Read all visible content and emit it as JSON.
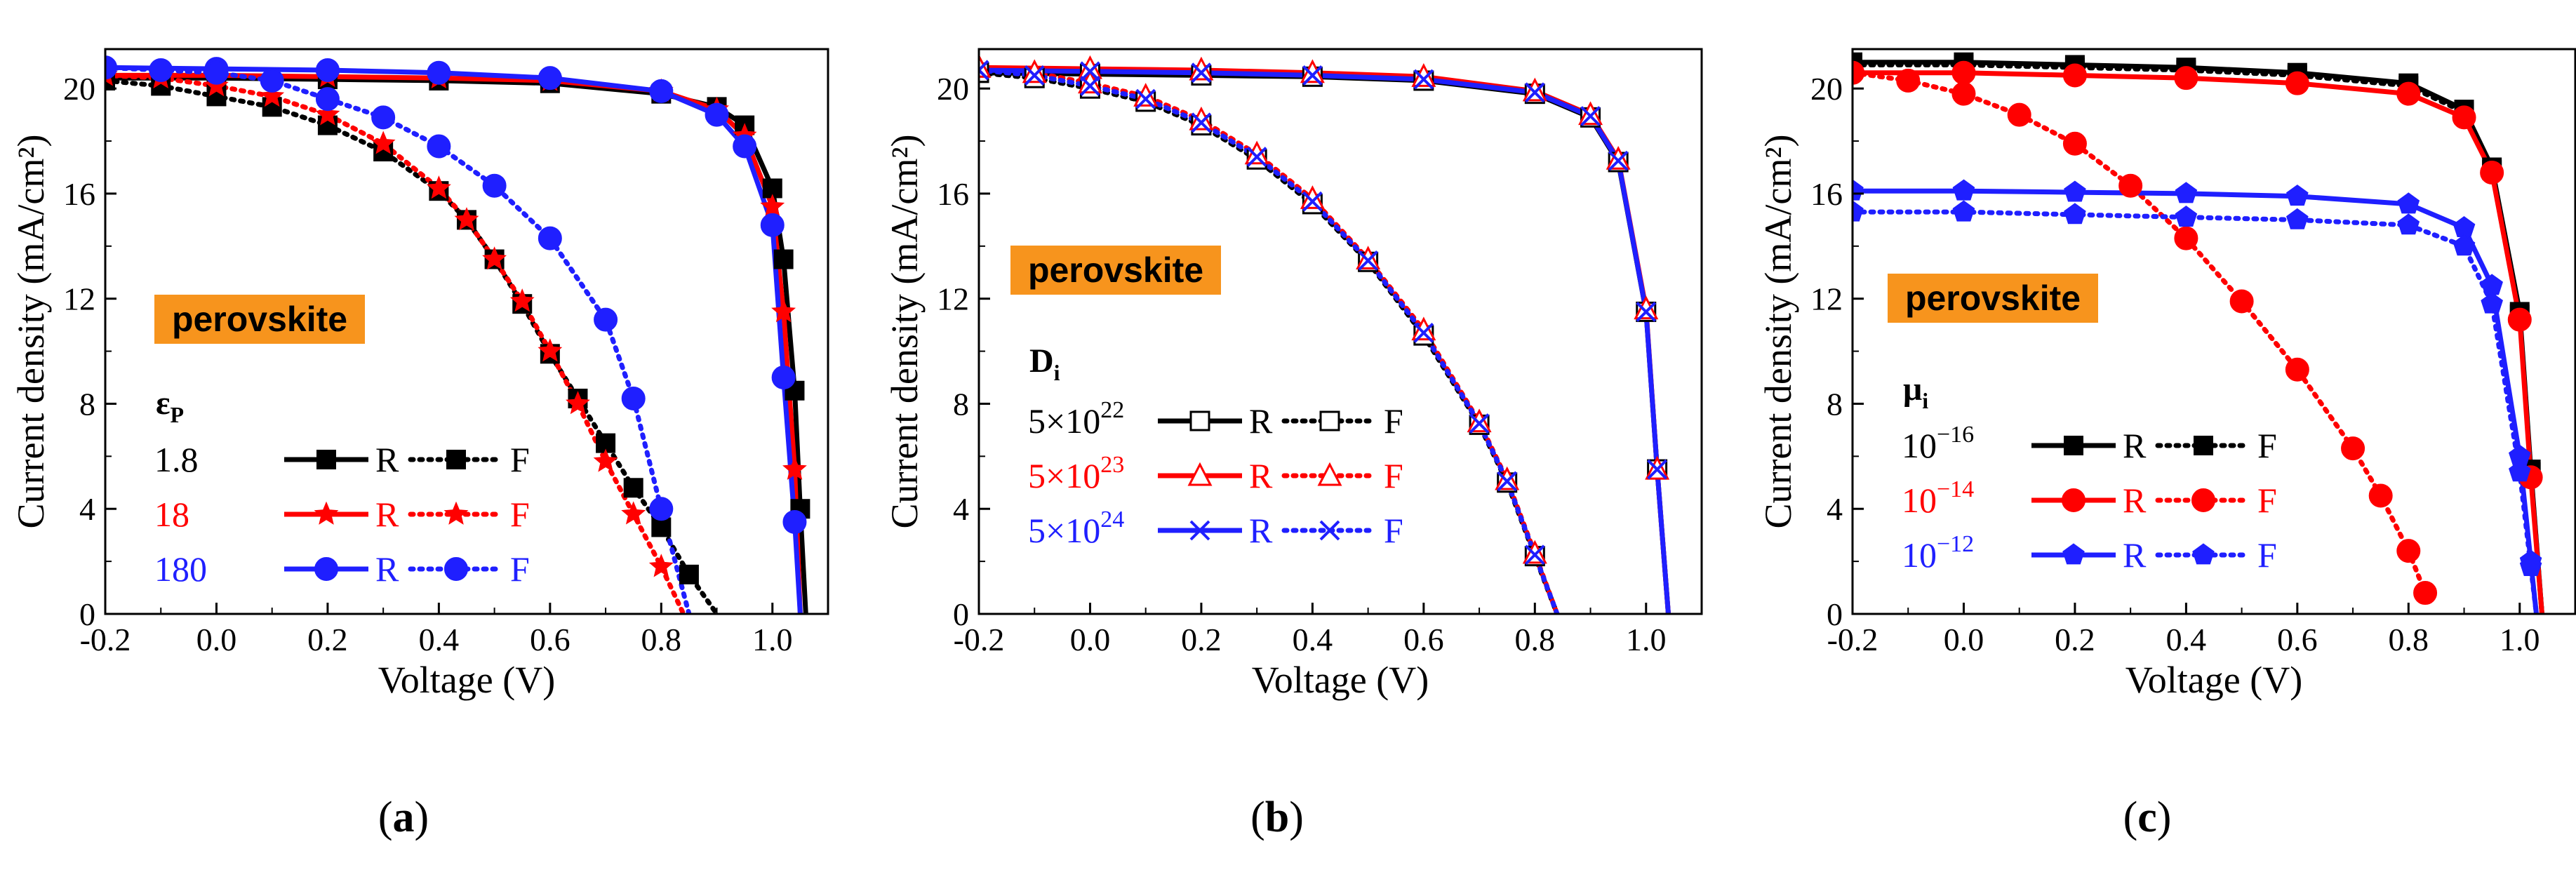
{
  "colors": {
    "black": "#000000",
    "red": "#ff0000",
    "blue": "#1f1fff",
    "badge": "#f7941d"
  },
  "chart_data": [
    {
      "type": "line",
      "panel_label": "(a)",
      "xlabel": "Voltage (V)",
      "ylabel": "Current density (mA/cm²)",
      "xlim": [
        -0.2,
        1.1
      ],
      "ylim": [
        0,
        21.5
      ],
      "xticks": [
        "-0.2",
        "0.0",
        "0.2",
        "0.4",
        "0.6",
        "0.8",
        "1.0"
      ],
      "xtick_values": [
        -0.2,
        0.0,
        0.2,
        0.4,
        0.6,
        0.8,
        1.0
      ],
      "yticks": [
        "0",
        "4",
        "8",
        "12",
        "16",
        "20"
      ],
      "ytick_values": [
        0,
        4,
        8,
        12,
        16,
        20
      ],
      "badge": "perovskite",
      "legend_param": "εP",
      "legend_reverse_label": "R",
      "legend_forward_label": "F",
      "series": [
        {
          "name": "1.8 R",
          "label": "1.8",
          "color": "#000000",
          "dash": "solid",
          "marker": "square",
          "x": [
            -0.2,
            0.0,
            0.2,
            0.4,
            0.6,
            0.8,
            0.9,
            0.95,
            1.0,
            1.02,
            1.04,
            1.05,
            1.06
          ],
          "y": [
            20.4,
            20.4,
            20.35,
            20.3,
            20.2,
            19.8,
            19.3,
            18.6,
            16.2,
            13.5,
            8.5,
            4.0,
            0
          ]
        },
        {
          "name": "1.8 F",
          "label": "1.8",
          "color": "#000000",
          "dash": "dot",
          "marker": "square",
          "x": [
            -0.2,
            -0.1,
            0.0,
            0.1,
            0.2,
            0.3,
            0.4,
            0.45,
            0.5,
            0.55,
            0.6,
            0.65,
            0.7,
            0.75,
            0.8,
            0.85,
            0.9
          ],
          "y": [
            20.3,
            20.1,
            19.7,
            19.3,
            18.6,
            17.6,
            16.1,
            15.0,
            13.5,
            11.8,
            9.9,
            8.2,
            6.5,
            4.8,
            3.3,
            1.5,
            0
          ]
        },
        {
          "name": "18 R",
          "label": "18",
          "color": "#ff0000",
          "dash": "solid",
          "marker": "star",
          "x": [
            -0.2,
            0.0,
            0.2,
            0.4,
            0.6,
            0.8,
            0.9,
            0.95,
            1.0,
            1.02,
            1.04,
            1.05
          ],
          "y": [
            20.5,
            20.5,
            20.45,
            20.4,
            20.3,
            19.9,
            19.2,
            18.2,
            15.5,
            11.5,
            5.5,
            0
          ]
        },
        {
          "name": "18 F",
          "label": "18",
          "color": "#ff0000",
          "dash": "dot",
          "marker": "star",
          "x": [
            -0.2,
            -0.1,
            0.0,
            0.1,
            0.2,
            0.3,
            0.4,
            0.45,
            0.5,
            0.55,
            0.6,
            0.65,
            0.7,
            0.75,
            0.8,
            0.84
          ],
          "y": [
            20.5,
            20.4,
            20.1,
            19.7,
            19.0,
            17.9,
            16.2,
            15.0,
            13.5,
            11.9,
            10.0,
            8.0,
            5.8,
            3.8,
            1.8,
            0
          ]
        },
        {
          "name": "180 R",
          "label": "180",
          "color": "#1f1fff",
          "dash": "solid",
          "marker": "circle",
          "x": [
            -0.2,
            0.0,
            0.2,
            0.4,
            0.6,
            0.8,
            0.9,
            0.95,
            1.0,
            1.02,
            1.04,
            1.05
          ],
          "y": [
            20.8,
            20.75,
            20.7,
            20.6,
            20.4,
            19.9,
            19.0,
            17.8,
            14.8,
            9.0,
            3.5,
            0
          ]
        },
        {
          "name": "180 F",
          "label": "180",
          "color": "#1f1fff",
          "dash": "dot",
          "marker": "circle",
          "x": [
            -0.2,
            -0.1,
            0.0,
            0.1,
            0.2,
            0.3,
            0.4,
            0.5,
            0.6,
            0.7,
            0.75,
            0.8,
            0.85
          ],
          "y": [
            20.8,
            20.7,
            20.6,
            20.3,
            19.6,
            18.9,
            17.8,
            16.3,
            14.3,
            11.2,
            8.2,
            4.0,
            0
          ]
        }
      ]
    },
    {
      "type": "line",
      "panel_label": "(b)",
      "xlabel": "Voltage (V)",
      "ylabel": "Current density (mA/cm²)",
      "xlim": [
        -0.2,
        1.1
      ],
      "ylim": [
        0,
        21.5
      ],
      "xticks": [
        "-0.2",
        "0.0",
        "0.2",
        "0.4",
        "0.6",
        "0.8",
        "1.0"
      ],
      "xtick_values": [
        -0.2,
        0.0,
        0.2,
        0.4,
        0.6,
        0.8,
        1.0
      ],
      "yticks": [
        "0",
        "4",
        "8",
        "12",
        "16",
        "20"
      ],
      "ytick_values": [
        0,
        4,
        8,
        12,
        16,
        20
      ],
      "badge": "perovskite",
      "legend_param": "Di",
      "legend_reverse_label": "R",
      "legend_forward_label": "F",
      "series": [
        {
          "name": "5×10^22 R",
          "label": "5×10²²",
          "color": "#000000",
          "dash": "solid",
          "marker": "open-square",
          "x": [
            -0.2,
            0.0,
            0.2,
            0.4,
            0.6,
            0.8,
            0.9,
            0.95,
            1.0,
            1.02,
            1.04
          ],
          "y": [
            20.6,
            20.55,
            20.5,
            20.45,
            20.3,
            19.8,
            18.9,
            17.2,
            11.5,
            5.5,
            0
          ]
        },
        {
          "name": "5×10^22 F",
          "label": "5×10²²",
          "color": "#000000",
          "dash": "dot",
          "marker": "open-square",
          "x": [
            -0.2,
            -0.1,
            0.0,
            0.1,
            0.2,
            0.3,
            0.4,
            0.5,
            0.6,
            0.7,
            0.75,
            0.8,
            0.84
          ],
          "y": [
            20.6,
            20.4,
            20.0,
            19.5,
            18.6,
            17.3,
            15.6,
            13.4,
            10.6,
            7.2,
            5.0,
            2.2,
            0
          ]
        },
        {
          "name": "5×10^23 R",
          "label": "5×10²³",
          "color": "#ff0000",
          "dash": "solid",
          "marker": "open-triangle",
          "x": [
            -0.2,
            0.0,
            0.2,
            0.4,
            0.6,
            0.8,
            0.9,
            0.95,
            1.0,
            1.02,
            1.04
          ],
          "y": [
            20.8,
            20.75,
            20.7,
            20.6,
            20.45,
            19.9,
            19.0,
            17.3,
            11.6,
            5.5,
            0
          ]
        },
        {
          "name": "5×10^23 F",
          "label": "5×10²³",
          "color": "#ff0000",
          "dash": "dot",
          "marker": "open-triangle",
          "x": [
            -0.2,
            -0.1,
            0.0,
            0.1,
            0.2,
            0.3,
            0.4,
            0.5,
            0.6,
            0.7,
            0.75,
            0.8,
            0.84
          ],
          "y": [
            20.8,
            20.6,
            20.2,
            19.7,
            18.8,
            17.5,
            15.8,
            13.5,
            10.8,
            7.3,
            5.1,
            2.3,
            0
          ]
        },
        {
          "name": "5×10^24 R",
          "label": "5×10²⁴",
          "color": "#1f1fff",
          "dash": "solid",
          "marker": "cross",
          "x": [
            -0.2,
            0.0,
            0.2,
            0.4,
            0.6,
            0.8,
            0.9,
            0.95,
            1.0,
            1.02,
            1.04
          ],
          "y": [
            20.7,
            20.65,
            20.6,
            20.5,
            20.35,
            19.85,
            18.95,
            17.25,
            11.5,
            5.5,
            0
          ]
        },
        {
          "name": "5×10^24 F",
          "label": "5×10²⁴",
          "color": "#1f1fff",
          "dash": "dot",
          "marker": "cross",
          "x": [
            -0.2,
            -0.1,
            0.0,
            0.1,
            0.2,
            0.3,
            0.4,
            0.5,
            0.6,
            0.7,
            0.75,
            0.8,
            0.84
          ],
          "y": [
            20.7,
            20.5,
            20.1,
            19.6,
            18.7,
            17.4,
            15.7,
            13.45,
            10.7,
            7.25,
            5.05,
            2.25,
            0
          ]
        }
      ]
    },
    {
      "type": "line",
      "panel_label": "(c)",
      "xlabel": "Voltage (V)",
      "ylabel": "Current density (mA/cm²)",
      "xlim": [
        -0.2,
        1.1
      ],
      "ylim": [
        0,
        21.5
      ],
      "xticks": [
        "-0.2",
        "0.0",
        "0.2",
        "0.4",
        "0.6",
        "0.8",
        "1.0"
      ],
      "xtick_values": [
        -0.2,
        0.0,
        0.2,
        0.4,
        0.6,
        0.8,
        1.0
      ],
      "yticks": [
        "0",
        "4",
        "8",
        "12",
        "16",
        "20"
      ],
      "ytick_values": [
        0,
        4,
        8,
        12,
        16,
        20
      ],
      "badge": "perovskite",
      "legend_param": "μi",
      "legend_reverse_label": "R",
      "legend_forward_label": "F",
      "series": [
        {
          "name": "10^-16 R",
          "label": "10⁻¹⁶",
          "color": "#000000",
          "dash": "solid",
          "marker": "square",
          "x": [
            -0.2,
            0.0,
            0.2,
            0.4,
            0.6,
            0.8,
            0.9,
            0.95,
            1.0,
            1.02,
            1.04
          ],
          "y": [
            21.0,
            21.0,
            20.9,
            20.8,
            20.6,
            20.2,
            19.2,
            17.0,
            11.5,
            5.5,
            0
          ]
        },
        {
          "name": "10^-16 F",
          "label": "10⁻¹⁶",
          "color": "#000000",
          "dash": "dot",
          "marker": "square",
          "x": [
            -0.2,
            0.0,
            0.2,
            0.4,
            0.6,
            0.8,
            0.9,
            0.95,
            1.0,
            1.02,
            1.04
          ],
          "y": [
            20.9,
            20.9,
            20.8,
            20.7,
            20.5,
            20.1,
            19.1,
            16.9,
            11.4,
            5.4,
            0
          ]
        },
        {
          "name": "10^-14 R",
          "label": "10⁻¹⁴",
          "color": "#ff0000",
          "dash": "solid",
          "marker": "circle",
          "x": [
            -0.2,
            0.0,
            0.2,
            0.4,
            0.6,
            0.8,
            0.9,
            0.95,
            1.0,
            1.02,
            1.04
          ],
          "y": [
            20.6,
            20.6,
            20.5,
            20.4,
            20.2,
            19.8,
            18.9,
            16.8,
            11.2,
            5.2,
            0
          ]
        },
        {
          "name": "10^-14 F",
          "label": "10⁻¹⁴",
          "color": "#ff0000",
          "dash": "dot",
          "marker": "circle",
          "x": [
            -0.2,
            -0.1,
            0.0,
            0.1,
            0.2,
            0.3,
            0.4,
            0.5,
            0.6,
            0.7,
            0.75,
            0.8,
            0.83
          ],
          "y": [
            20.6,
            20.3,
            19.8,
            19.0,
            17.9,
            16.3,
            14.3,
            11.9,
            9.3,
            6.3,
            4.5,
            2.4,
            0.8
          ]
        },
        {
          "name": "10^-12 R",
          "label": "10⁻¹²",
          "color": "#1f1fff",
          "dash": "solid",
          "marker": "pentagon",
          "x": [
            -0.2,
            0.0,
            0.2,
            0.4,
            0.6,
            0.8,
            0.9,
            0.95,
            1.0,
            1.02,
            1.03
          ],
          "y": [
            16.1,
            16.1,
            16.05,
            16.0,
            15.9,
            15.6,
            14.7,
            12.5,
            6.0,
            2.0,
            0
          ]
        },
        {
          "name": "10^-12 F",
          "label": "10⁻¹²",
          "color": "#1f1fff",
          "dash": "dot",
          "marker": "pentagon",
          "x": [
            -0.2,
            0.0,
            0.2,
            0.4,
            0.6,
            0.8,
            0.9,
            0.95,
            1.0,
            1.02,
            1.03
          ],
          "y": [
            15.3,
            15.3,
            15.2,
            15.1,
            15.0,
            14.8,
            14.0,
            11.8,
            5.4,
            1.8,
            0
          ]
        }
      ]
    }
  ]
}
